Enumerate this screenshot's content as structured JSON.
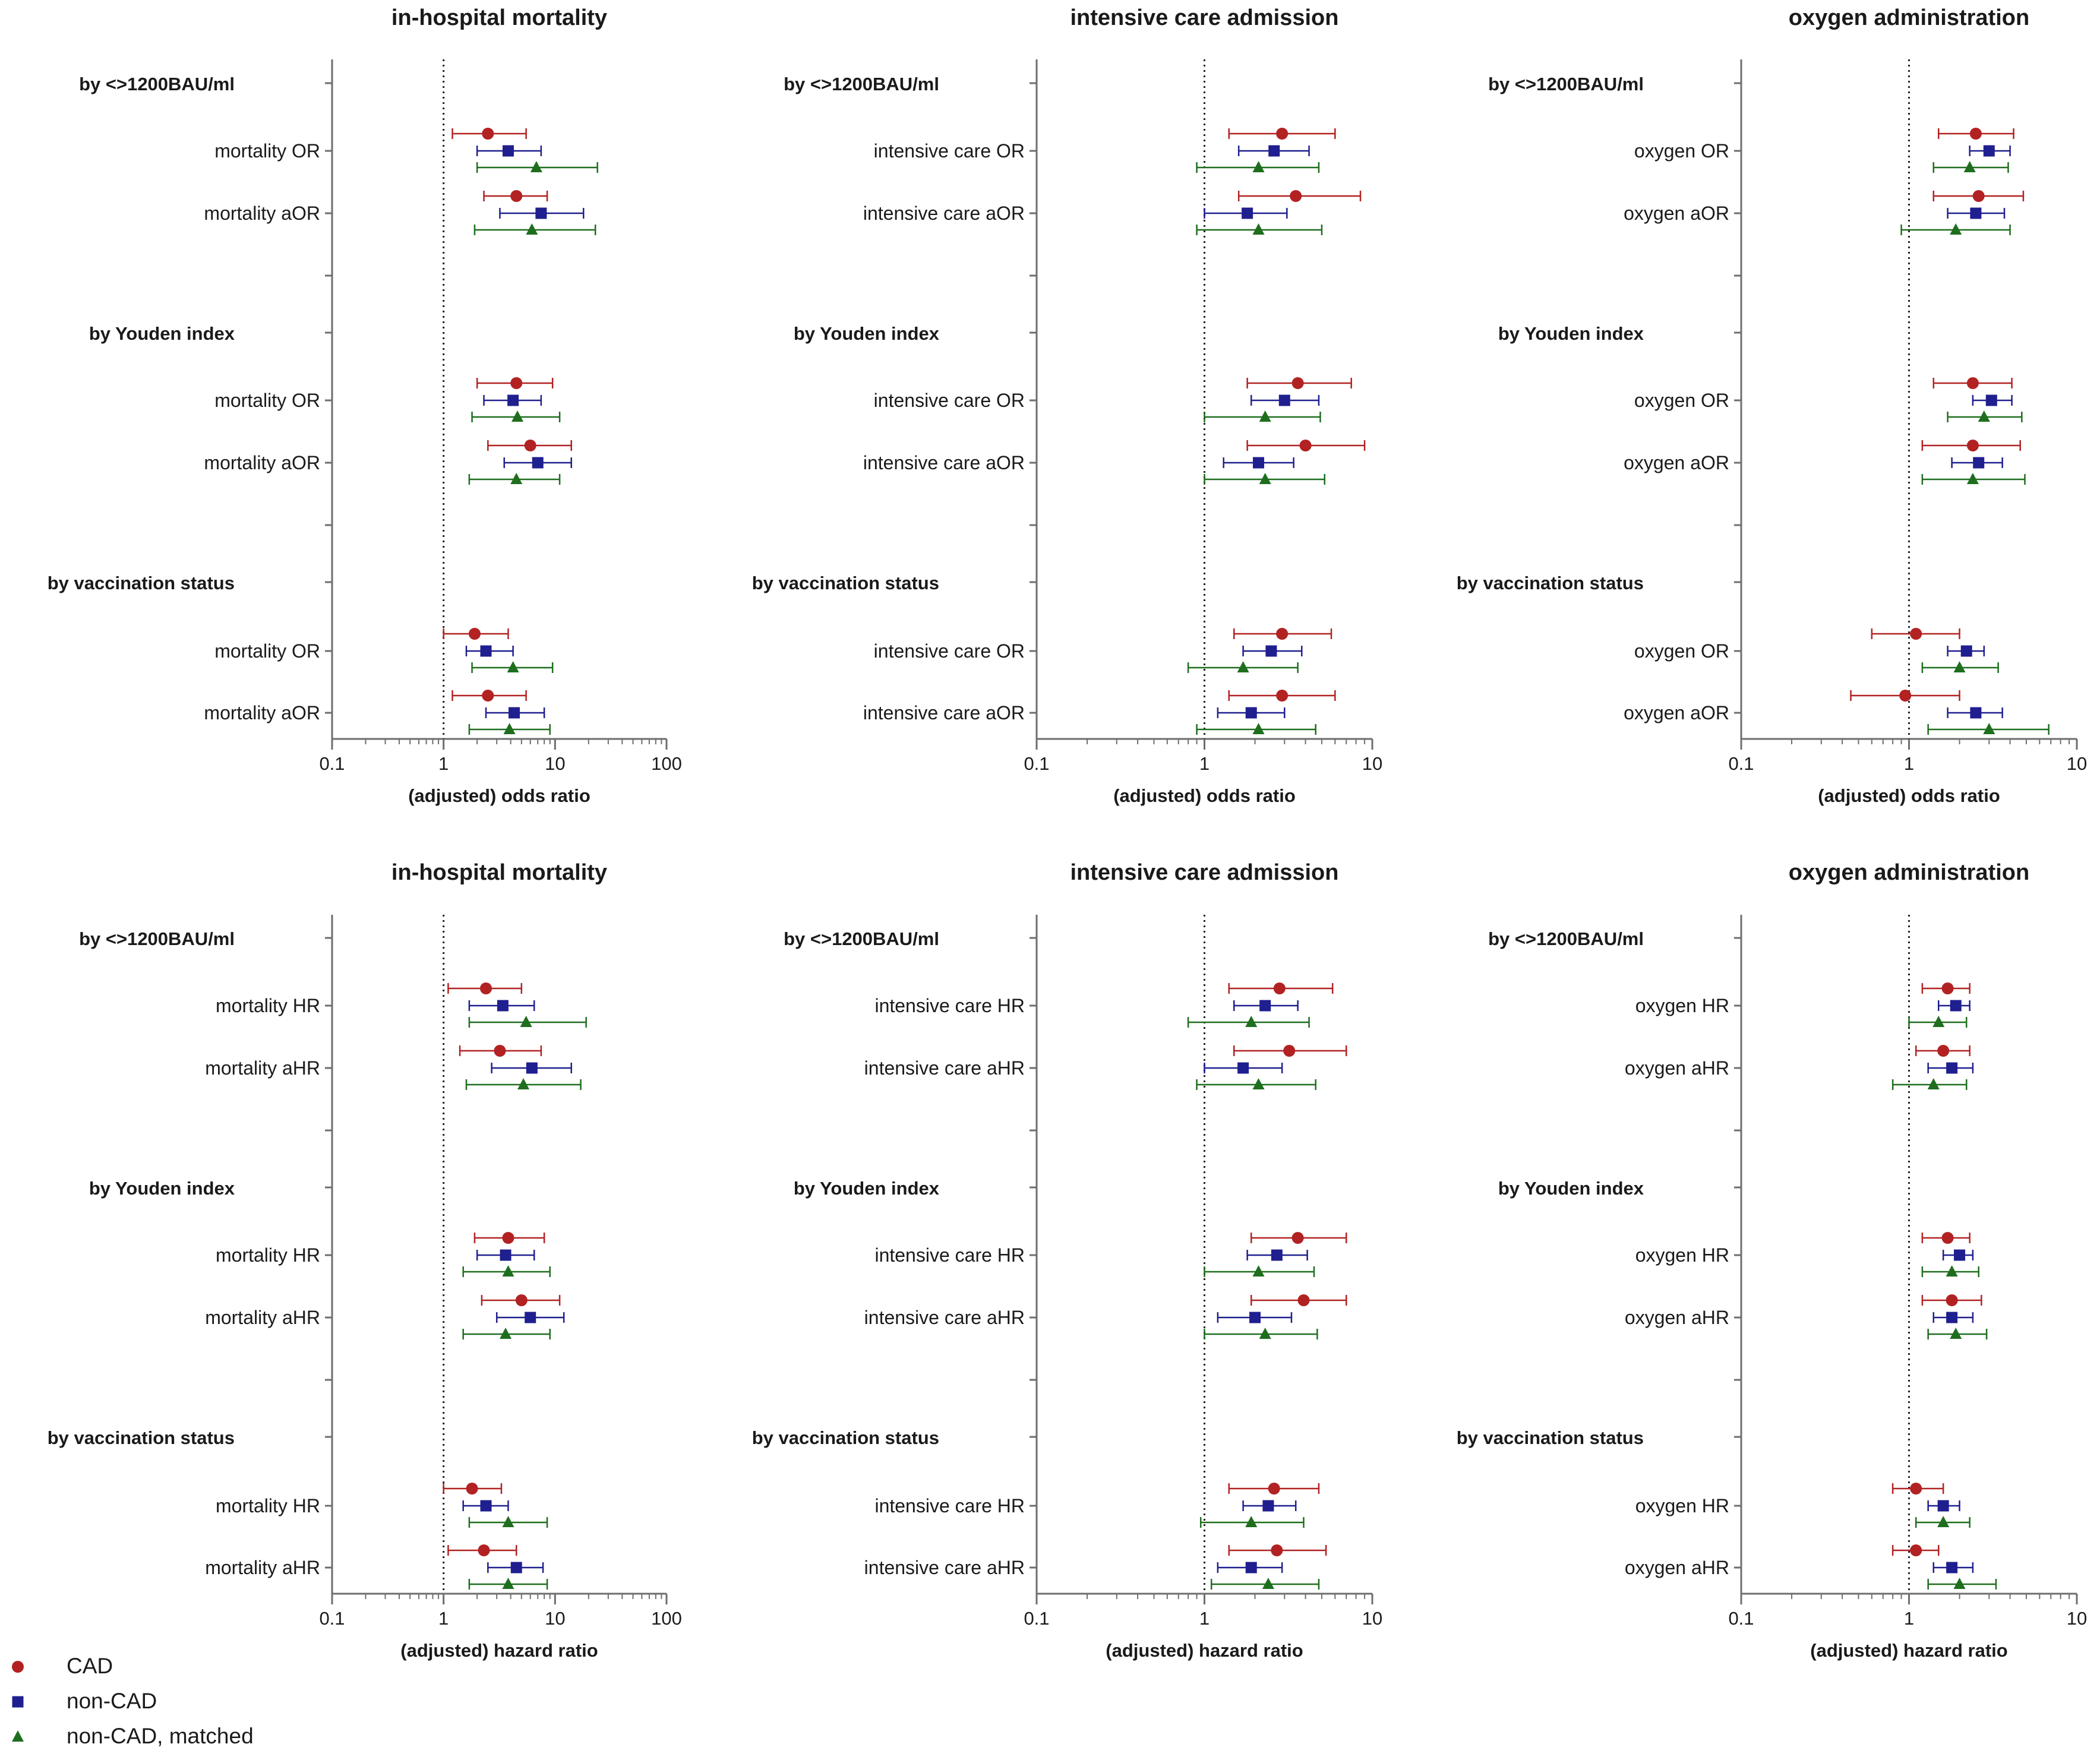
{
  "colors": {
    "CAD": "#b22222",
    "non-CAD": "#1f1f8f",
    "non-CAD, matched": "#1e6e1e",
    "axis": "#6e6e6e",
    "text": "#1a1a1a"
  },
  "legend": [
    {
      "label": "CAD",
      "marker": "circle"
    },
    {
      "label": "non-CAD",
      "marker": "square"
    },
    {
      "label": "non-CAD, matched",
      "marker": "triangle"
    }
  ],
  "chart_data": [
    {
      "type": "forest",
      "title": "in-hospital mortality",
      "xlabel": "(adjusted) odds ratio",
      "xscale": "log",
      "xlim": [
        0.1,
        100
      ],
      "xticks": [
        "0.1",
        "1",
        "10",
        "100"
      ],
      "reference_line": 1,
      "series_names": [
        "CAD",
        "non-CAD",
        "non-CAD, matched"
      ],
      "groups": [
        {
          "label": "by <>1200BAU/ml",
          "rows": [
            {
              "label": "mortality OR",
              "CAD": [
                2.5,
                1.2,
                5.5
              ],
              "non-CAD": [
                3.8,
                2.0,
                7.5
              ],
              "non-CAD, matched": [
                6.8,
                2.0,
                24
              ]
            },
            {
              "label": "mortality aOR",
              "CAD": [
                4.5,
                2.3,
                8.5
              ],
              "non-CAD": [
                7.5,
                3.2,
                18
              ],
              "non-CAD, matched": [
                6.2,
                1.9,
                23
              ]
            }
          ]
        },
        {
          "label": "by Youden index",
          "rows": [
            {
              "label": "mortality OR",
              "CAD": [
                4.5,
                2.0,
                9.5
              ],
              "non-CAD": [
                4.2,
                2.3,
                7.5
              ],
              "non-CAD, matched": [
                4.6,
                1.8,
                11
              ]
            },
            {
              "label": "mortality aOR",
              "CAD": [
                6.0,
                2.5,
                14
              ],
              "non-CAD": [
                7.0,
                3.5,
                14
              ],
              "non-CAD, matched": [
                4.5,
                1.7,
                11
              ]
            }
          ]
        },
        {
          "label": "by vaccination status",
          "rows": [
            {
              "label": "mortality OR",
              "CAD": [
                1.9,
                1.0,
                3.8
              ],
              "non-CAD": [
                2.4,
                1.6,
                4.2
              ],
              "non-CAD, matched": [
                4.2,
                1.8,
                9.5
              ]
            },
            {
              "label": "mortality aOR",
              "CAD": [
                2.5,
                1.2,
                5.5
              ],
              "non-CAD": [
                4.3,
                2.4,
                8.0
              ],
              "non-CAD, matched": [
                3.9,
                1.7,
                9.0
              ]
            }
          ]
        }
      ]
    },
    {
      "type": "forest",
      "title": "intensive care admission",
      "xlabel": "(adjusted) odds ratio",
      "xscale": "log",
      "xlim": [
        0.1,
        10
      ],
      "xticks": [
        "0.1",
        "1",
        "10"
      ],
      "reference_line": 1,
      "series_names": [
        "CAD",
        "non-CAD",
        "non-CAD, matched"
      ],
      "groups": [
        {
          "label": "by <>1200BAU/ml",
          "rows": [
            {
              "label": "intensive care OR",
              "CAD": [
                2.9,
                1.4,
                6.0
              ],
              "non-CAD": [
                2.6,
                1.6,
                4.2
              ],
              "non-CAD, matched": [
                2.1,
                0.9,
                4.8
              ]
            },
            {
              "label": "intensive care aOR",
              "CAD": [
                3.5,
                1.6,
                8.5
              ],
              "non-CAD": [
                1.8,
                1.0,
                3.1
              ],
              "non-CAD, matched": [
                2.1,
                0.9,
                5.0
              ]
            }
          ]
        },
        {
          "label": "by Youden index",
          "rows": [
            {
              "label": "intensive care OR",
              "CAD": [
                3.6,
                1.8,
                7.5
              ],
              "non-CAD": [
                3.0,
                1.9,
                4.8
              ],
              "non-CAD, matched": [
                2.3,
                1.0,
                4.9
              ]
            },
            {
              "label": "intensive care aOR",
              "CAD": [
                4.0,
                1.8,
                9.0
              ],
              "non-CAD": [
                2.1,
                1.3,
                3.4
              ],
              "non-CAD, matched": [
                2.3,
                1.0,
                5.2
              ]
            }
          ]
        },
        {
          "label": "by vaccination status",
          "rows": [
            {
              "label": "intensive care OR",
              "CAD": [
                2.9,
                1.5,
                5.7
              ],
              "non-CAD": [
                2.5,
                1.7,
                3.8
              ],
              "non-CAD, matched": [
                1.7,
                0.8,
                3.6
              ]
            },
            {
              "label": "intensive care aOR",
              "CAD": [
                2.9,
                1.4,
                6.0
              ],
              "non-CAD": [
                1.9,
                1.2,
                3.0
              ],
              "non-CAD, matched": [
                2.1,
                0.9,
                4.6
              ]
            }
          ]
        }
      ]
    },
    {
      "type": "forest",
      "title": "oxygen administration",
      "xlabel": "(adjusted) odds ratio",
      "xscale": "log",
      "xlim": [
        0.1,
        10
      ],
      "xticks": [
        "0.1",
        "1",
        "10"
      ],
      "reference_line": 1,
      "series_names": [
        "CAD",
        "non-CAD",
        "non-CAD, matched"
      ],
      "groups": [
        {
          "label": "by <>1200BAU/ml",
          "rows": [
            {
              "label": "oxygen OR",
              "CAD": [
                2.5,
                1.5,
                4.2
              ],
              "non-CAD": [
                3.0,
                2.3,
                4.0
              ],
              "non-CAD, matched": [
                2.3,
                1.4,
                3.9
              ]
            },
            {
              "label": "oxygen aOR",
              "CAD": [
                2.6,
                1.4,
                4.8
              ],
              "non-CAD": [
                2.5,
                1.7,
                3.7
              ],
              "non-CAD, matched": [
                1.9,
                0.9,
                4.0
              ]
            }
          ]
        },
        {
          "label": "by Youden index",
          "rows": [
            {
              "label": "oxygen OR",
              "CAD": [
                2.4,
                1.4,
                4.1
              ],
              "non-CAD": [
                3.1,
                2.4,
                4.1
              ],
              "non-CAD, matched": [
                2.8,
                1.7,
                4.7
              ]
            },
            {
              "label": "oxygen aOR",
              "CAD": [
                2.4,
                1.2,
                4.6
              ],
              "non-CAD": [
                2.6,
                1.8,
                3.6
              ],
              "non-CAD, matched": [
                2.4,
                1.2,
                4.9
              ]
            }
          ]
        },
        {
          "label": "by vaccination status",
          "rows": [
            {
              "label": "oxygen OR",
              "CAD": [
                1.1,
                0.6,
                2.0
              ],
              "non-CAD": [
                2.2,
                1.7,
                2.8
              ],
              "non-CAD, matched": [
                2.0,
                1.2,
                3.4
              ]
            },
            {
              "label": "oxygen aOR",
              "CAD": [
                0.95,
                0.45,
                2.0
              ],
              "non-CAD": [
                2.5,
                1.7,
                3.6
              ],
              "non-CAD, matched": [
                3.0,
                1.3,
                6.8
              ]
            }
          ]
        }
      ]
    },
    {
      "type": "forest",
      "title": "in-hospital mortality",
      "xlabel": "(adjusted) hazard ratio",
      "xscale": "log",
      "xlim": [
        0.1,
        100
      ],
      "xticks": [
        "0.1",
        "1",
        "10",
        "100"
      ],
      "reference_line": 1,
      "series_names": [
        "CAD",
        "non-CAD",
        "non-CAD, matched"
      ],
      "groups": [
        {
          "label": "by <>1200BAU/ml",
          "rows": [
            {
              "label": "mortality HR",
              "CAD": [
                2.4,
                1.1,
                5.0
              ],
              "non-CAD": [
                3.4,
                1.7,
                6.5
              ],
              "non-CAD, matched": [
                5.5,
                1.7,
                19
              ]
            },
            {
              "label": "mortality aHR",
              "CAD": [
                3.2,
                1.4,
                7.5
              ],
              "non-CAD": [
                6.2,
                2.7,
                14
              ],
              "non-CAD, matched": [
                5.2,
                1.6,
                17
              ]
            }
          ]
        },
        {
          "label": "by Youden index",
          "rows": [
            {
              "label": "mortality HR",
              "CAD": [
                3.8,
                1.9,
                8.0
              ],
              "non-CAD": [
                3.6,
                2.0,
                6.5
              ],
              "non-CAD, matched": [
                3.8,
                1.5,
                9.0
              ]
            },
            {
              "label": "mortality aHR",
              "CAD": [
                5.0,
                2.2,
                11
              ],
              "non-CAD": [
                6.0,
                3.0,
                12
              ],
              "non-CAD, matched": [
                3.6,
                1.5,
                9.0
              ]
            }
          ]
        },
        {
          "label": "by vaccination status",
          "rows": [
            {
              "label": "mortality HR",
              "CAD": [
                1.8,
                1.0,
                3.3
              ],
              "non-CAD": [
                2.4,
                1.5,
                3.8
              ],
              "non-CAD, matched": [
                3.8,
                1.7,
                8.5
              ]
            },
            {
              "label": "mortality aHR",
              "CAD": [
                2.3,
                1.1,
                4.5
              ],
              "non-CAD": [
                4.5,
                2.5,
                7.8
              ],
              "non-CAD, matched": [
                3.8,
                1.7,
                8.5
              ]
            }
          ]
        }
      ]
    },
    {
      "type": "forest",
      "title": "intensive care admission",
      "xlabel": "(adjusted) hazard ratio",
      "xscale": "log",
      "xlim": [
        0.1,
        10
      ],
      "xticks": [
        "0.1",
        "1",
        "10"
      ],
      "reference_line": 1,
      "series_names": [
        "CAD",
        "non-CAD",
        "non-CAD, matched"
      ],
      "groups": [
        {
          "label": "by <>1200BAU/ml",
          "rows": [
            {
              "label": "intensive care HR",
              "CAD": [
                2.8,
                1.4,
                5.8
              ],
              "non-CAD": [
                2.3,
                1.5,
                3.6
              ],
              "non-CAD, matched": [
                1.9,
                0.8,
                4.2
              ]
            },
            {
              "label": "intensive care aHR",
              "CAD": [
                3.2,
                1.5,
                7.0
              ],
              "non-CAD": [
                1.7,
                1.0,
                2.9
              ],
              "non-CAD, matched": [
                2.1,
                0.9,
                4.6
              ]
            }
          ]
        },
        {
          "label": "by Youden index",
          "rows": [
            {
              "label": "intensive care HR",
              "CAD": [
                3.6,
                1.9,
                7.0
              ],
              "non-CAD": [
                2.7,
                1.8,
                4.1
              ],
              "non-CAD, matched": [
                2.1,
                1.0,
                4.5
              ]
            },
            {
              "label": "intensive care aHR",
              "CAD": [
                3.9,
                1.9,
                7.0
              ],
              "non-CAD": [
                2.0,
                1.2,
                3.3
              ],
              "non-CAD, matched": [
                2.3,
                1.0,
                4.7
              ]
            }
          ]
        },
        {
          "label": "by vaccination status",
          "rows": [
            {
              "label": "intensive care HR",
              "CAD": [
                2.6,
                1.4,
                4.8
              ],
              "non-CAD": [
                2.4,
                1.7,
                3.5
              ],
              "non-CAD, matched": [
                1.9,
                0.95,
                3.9
              ]
            },
            {
              "label": "intensive care aHR",
              "CAD": [
                2.7,
                1.4,
                5.3
              ],
              "non-CAD": [
                1.9,
                1.2,
                2.9
              ],
              "non-CAD, matched": [
                2.4,
                1.1,
                4.8
              ]
            }
          ]
        }
      ]
    },
    {
      "type": "forest",
      "title": "oxygen administration",
      "xlabel": "(adjusted) hazard ratio",
      "xscale": "log",
      "xlim": [
        0.1,
        10
      ],
      "xticks": [
        "0.1",
        "1",
        "10"
      ],
      "reference_line": 1,
      "series_names": [
        "CAD",
        "non-CAD",
        "non-CAD, matched"
      ],
      "groups": [
        {
          "label": "by <>1200BAU/ml",
          "rows": [
            {
              "label": "oxygen HR",
              "CAD": [
                1.7,
                1.2,
                2.3
              ],
              "non-CAD": [
                1.9,
                1.5,
                2.3
              ],
              "non-CAD, matched": [
                1.5,
                1.0,
                2.2
              ]
            },
            {
              "label": "oxygen aHR",
              "CAD": [
                1.6,
                1.1,
                2.3
              ],
              "non-CAD": [
                1.8,
                1.3,
                2.4
              ],
              "non-CAD, matched": [
                1.4,
                0.8,
                2.2
              ]
            }
          ]
        },
        {
          "label": "by Youden index",
          "rows": [
            {
              "label": "oxygen HR",
              "CAD": [
                1.7,
                1.2,
                2.3
              ],
              "non-CAD": [
                2.0,
                1.6,
                2.4
              ],
              "non-CAD, matched": [
                1.8,
                1.2,
                2.6
              ]
            },
            {
              "label": "oxygen aHR",
              "CAD": [
                1.8,
                1.2,
                2.7
              ],
              "non-CAD": [
                1.8,
                1.4,
                2.4
              ],
              "non-CAD, matched": [
                1.9,
                1.3,
                2.9
              ]
            }
          ]
        },
        {
          "label": "by vaccination status",
          "rows": [
            {
              "label": "oxygen HR",
              "CAD": [
                1.1,
                0.8,
                1.6
              ],
              "non-CAD": [
                1.6,
                1.3,
                2.0
              ],
              "non-CAD, matched": [
                1.6,
                1.1,
                2.3
              ]
            },
            {
              "label": "oxygen aHR",
              "CAD": [
                1.1,
                0.8,
                1.5
              ],
              "non-CAD": [
                1.8,
                1.4,
                2.4
              ],
              "non-CAD, matched": [
                2.0,
                1.3,
                3.3
              ]
            }
          ]
        }
      ]
    }
  ]
}
